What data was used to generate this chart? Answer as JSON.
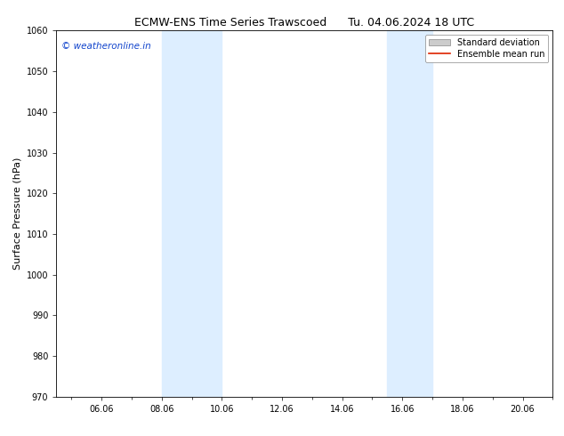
{
  "title_left": "ECMW-ENS Time Series Trawscoed",
  "title_right": "Tu. 04.06.2024 18 UTC",
  "ylabel": "Surface Pressure (hPa)",
  "xlim": [
    4.5,
    21.0
  ],
  "ylim": [
    970,
    1060
  ],
  "yticks": [
    970,
    980,
    990,
    1000,
    1010,
    1020,
    1030,
    1040,
    1050,
    1060
  ],
  "xtick_labels": [
    "06.06",
    "08.06",
    "10.06",
    "12.06",
    "14.06",
    "16.06",
    "18.06",
    "20.06"
  ],
  "xtick_positions": [
    6,
    8,
    10,
    12,
    14,
    16,
    18,
    20
  ],
  "shaded_bands": [
    {
      "xmin": 8.0,
      "xmax": 10.0
    },
    {
      "xmin": 15.5,
      "xmax": 17.0
    }
  ],
  "shade_color": "#ddeeff",
  "background_color": "#ffffff",
  "watermark_text": "© weatheronline.in",
  "watermark_color": "#1144cc",
  "legend_std_dev_color": "#cccccc",
  "legend_mean_color": "#dd2200",
  "title_fontsize": 9,
  "axis_label_fontsize": 8,
  "tick_fontsize": 7,
  "watermark_fontsize": 7.5
}
